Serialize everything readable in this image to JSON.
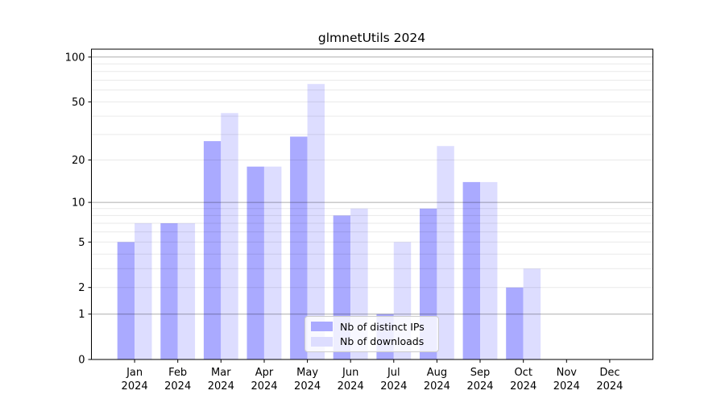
{
  "chart_data": {
    "type": "bar",
    "title": "glmnetUtils 2024",
    "categories": [
      "Jan 2024",
      "Feb 2024",
      "Mar 2024",
      "Apr 2024",
      "May 2024",
      "Jun 2024",
      "Jul 2024",
      "Aug 2024",
      "Sep 2024",
      "Oct 2024",
      "Nov 2024",
      "Dec 2024"
    ],
    "series": [
      {
        "name": "Nb of distinct IPs",
        "color": "#aaaaff",
        "values": [
          5,
          7,
          27,
          18,
          29,
          8,
          1,
          9,
          14,
          2,
          0,
          0
        ]
      },
      {
        "name": "Nb of downloads",
        "color": "#ddddff",
        "values": [
          7,
          7,
          42,
          18,
          66,
          9,
          5,
          25,
          14,
          3,
          0,
          0
        ]
      }
    ],
    "xlabel": "",
    "ylabel": "",
    "yscale": "log1p",
    "ylim": [
      0,
      113
    ],
    "yticks": [
      0,
      1,
      2,
      5,
      10,
      20,
      50,
      100
    ],
    "gridlines": {
      "major": [
        1,
        10,
        100
      ],
      "minor": [
        2,
        3,
        4,
        5,
        6,
        7,
        8,
        9,
        20,
        30,
        40,
        50,
        60,
        70,
        80,
        90
      ]
    },
    "grid": true,
    "legend_position": "lower center"
  },
  "legend": {
    "items": [
      {
        "label": "Nb of distinct IPs",
        "color": "#aaaaff"
      },
      {
        "label": "Nb of downloads",
        "color": "#ddddff"
      }
    ]
  }
}
